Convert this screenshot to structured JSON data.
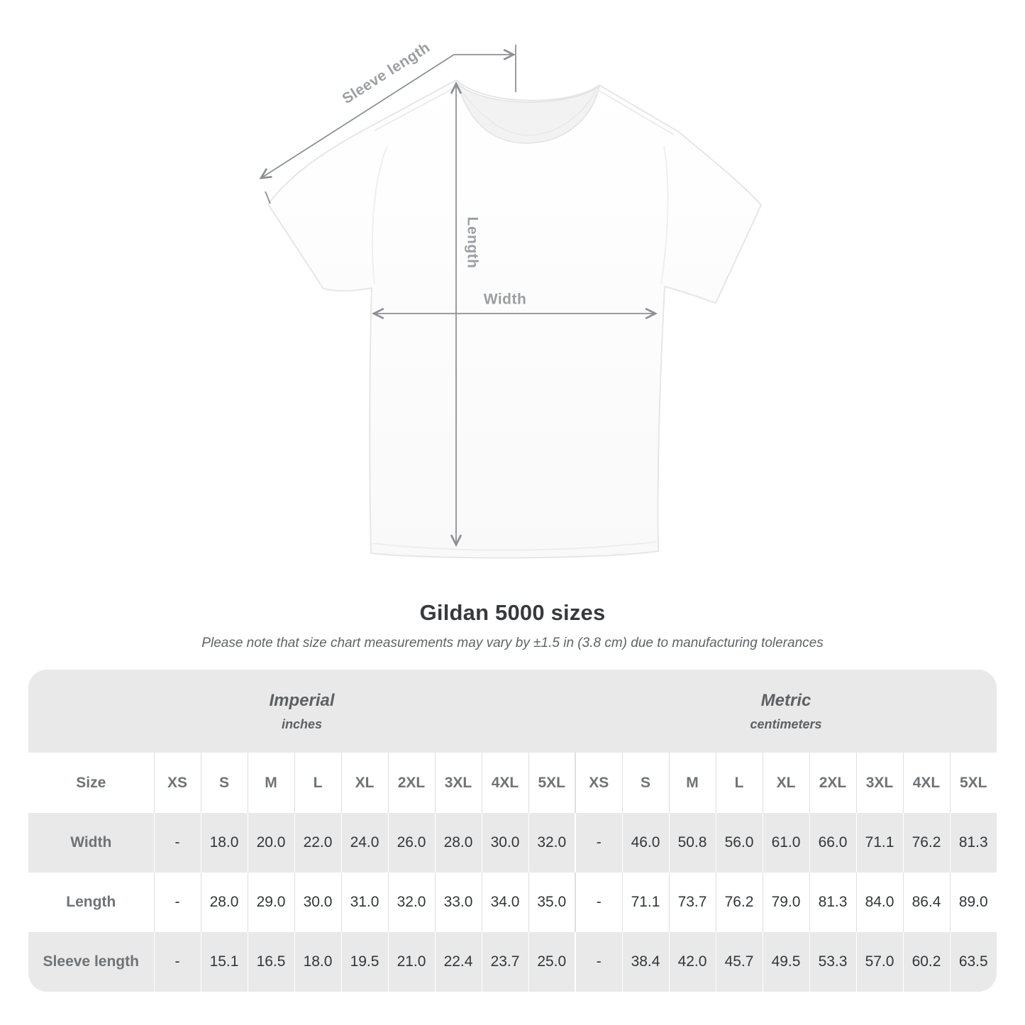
{
  "diagram": {
    "sleeve_length_label": "Sleeve length",
    "length_label": "Length",
    "width_label": "Width"
  },
  "title": "Gildan 5000 sizes",
  "subtitle": "Please note that size chart measurements may vary by ±1.5 in (3.8 cm) due to manufacturing tolerances",
  "table": {
    "size_label": "Size",
    "groups": [
      {
        "name": "Imperial",
        "unit": "inches"
      },
      {
        "name": "Metric",
        "unit": "centimeters"
      }
    ],
    "sizes": [
      "XS",
      "S",
      "M",
      "L",
      "XL",
      "2XL",
      "3XL",
      "4XL",
      "5XL"
    ],
    "rows": [
      {
        "label": "Width",
        "imperial": [
          "-",
          "18.0",
          "20.0",
          "22.0",
          "24.0",
          "26.0",
          "28.0",
          "30.0",
          "32.0"
        ],
        "metric": [
          "-",
          "46.0",
          "50.8",
          "56.0",
          "61.0",
          "66.0",
          "71.1",
          "76.2",
          "81.3"
        ]
      },
      {
        "label": "Length",
        "imperial": [
          "-",
          "28.0",
          "29.0",
          "30.0",
          "31.0",
          "32.0",
          "33.0",
          "34.0",
          "35.0"
        ],
        "metric": [
          "-",
          "71.1",
          "73.7",
          "76.2",
          "79.0",
          "81.3",
          "84.0",
          "86.4",
          "89.0"
        ]
      },
      {
        "label": "Sleeve length",
        "imperial": [
          "-",
          "15.1",
          "16.5",
          "18.0",
          "19.5",
          "21.0",
          "22.4",
          "23.7",
          "25.0"
        ],
        "metric": [
          "-",
          "38.4",
          "42.0",
          "45.7",
          "49.5",
          "53.3",
          "57.0",
          "60.2",
          "63.5"
        ]
      }
    ]
  },
  "chart_data": {
    "type": "table",
    "title": "Gildan 5000 sizes",
    "units": [
      "inches",
      "centimeters"
    ],
    "sizes": [
      "XS",
      "S",
      "M",
      "L",
      "XL",
      "2XL",
      "3XL",
      "4XL",
      "5XL"
    ],
    "measurements": {
      "Width": {
        "inches": [
          null,
          18.0,
          20.0,
          22.0,
          24.0,
          26.0,
          28.0,
          30.0,
          32.0
        ],
        "centimeters": [
          null,
          46.0,
          50.8,
          56.0,
          61.0,
          66.0,
          71.1,
          76.2,
          81.3
        ]
      },
      "Length": {
        "inches": [
          null,
          28.0,
          29.0,
          30.0,
          31.0,
          32.0,
          33.0,
          34.0,
          35.0
        ],
        "centimeters": [
          null,
          71.1,
          73.7,
          76.2,
          79.0,
          81.3,
          84.0,
          86.4,
          89.0
        ]
      },
      "Sleeve length": {
        "inches": [
          null,
          15.1,
          16.5,
          18.0,
          19.5,
          21.0,
          22.4,
          23.7,
          25.0
        ],
        "centimeters": [
          null,
          38.4,
          42.0,
          45.7,
          49.5,
          53.3,
          57.0,
          60.2,
          63.5
        ]
      }
    },
    "tolerance": "±1.5 in (3.8 cm)"
  },
  "colors": {
    "group_header_bg": "#e9e9e9",
    "shaded_row_bg": "#e9e9e9",
    "cell_divider": "#dedede",
    "measure_line": "#8d9196",
    "measure_label": "#9b9fa3",
    "title_text": "#37393c",
    "subtitle_text": "#5f6368",
    "header_text": "#6e7377",
    "value_text": "#323639"
  }
}
